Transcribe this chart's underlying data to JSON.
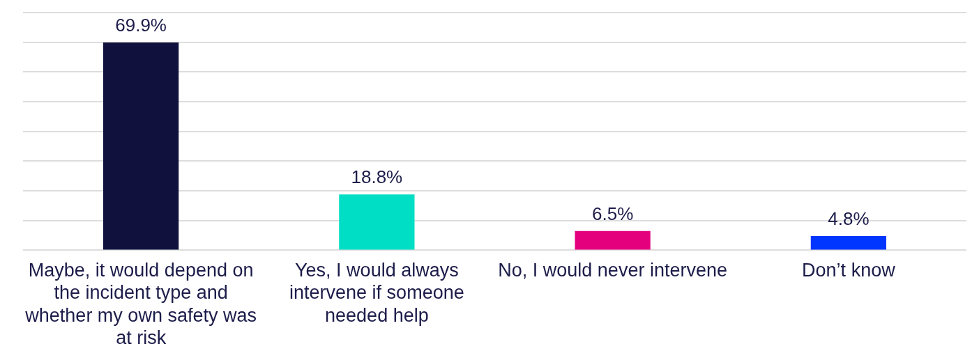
{
  "chart_data": {
    "type": "bar",
    "categories": [
      "Maybe, it would depend on the incident type and whether my own safety was at risk",
      "Yes, I would always intervene if someone needed help",
      "No, I would never intervene",
      "Don’t know"
    ],
    "values": [
      69.9,
      18.8,
      6.5,
      4.8
    ],
    "colors": [
      "#10123d",
      "#00dec5",
      "#e4007c",
      "#0036ff"
    ],
    "value_labels": [
      "69.9%",
      "18.8%",
      "6.5%",
      "4.8%"
    ],
    "ylim": [
      0,
      80
    ],
    "yticks": [
      {
        "value": 0,
        "label": null
      },
      {
        "value": 10,
        "label": null
      },
      {
        "value": 20,
        "label": null
      },
      {
        "value": 30,
        "label": null
      },
      {
        "value": 40,
        "label": null
      },
      {
        "value": 50,
        "label": null
      },
      {
        "value": 60,
        "label": null
      },
      {
        "value": 70,
        "label": null
      },
      {
        "value": 80,
        "label": null
      }
    ],
    "grid": "y",
    "tick_labels": "x"
  }
}
